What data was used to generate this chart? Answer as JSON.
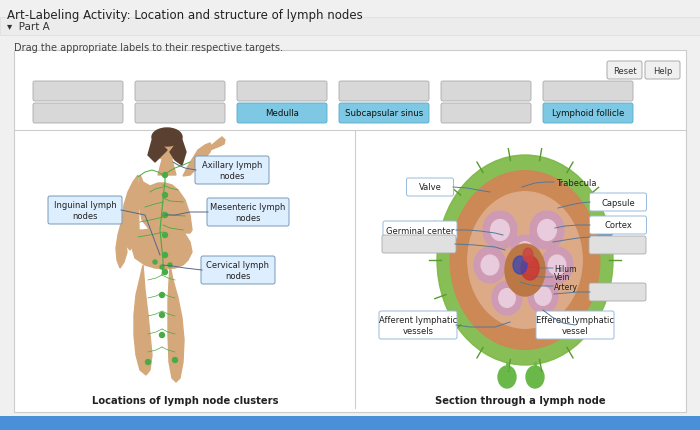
{
  "title": "Art-Labeling Activity: Location and structure of lymph nodes",
  "part_label": "▾  Part A",
  "instruction": "Drag the appropriate labels to their respective targets.",
  "bg_color": "#f0f0f0",
  "panel_bg": "#ffffff",
  "label_box_color_empty": "#d8d8d8",
  "label_box_color_filled_blue": "#7ec8e3",
  "filled_labels_row2": {
    "2": "Medulla",
    "3": "Subcapsular sinus",
    "5": "Lymphoid follicle"
  },
  "caption_left": "Locations of lymph node clusters",
  "caption_right": "Section through a lymph node",
  "reset_btn": "Reset",
  "help_btn": "Help",
  "bottom_bar_color": "#4a90d9",
  "body_skin": "#d4a87a",
  "body_hair": "#5a4030",
  "lymph_green": "#4aaa44",
  "annotation_bg": "#ddeeff",
  "annotation_edge": "#7799bb",
  "right_annotation_bg": "#ffffff",
  "right_annotation_edge": "#99bbdd"
}
